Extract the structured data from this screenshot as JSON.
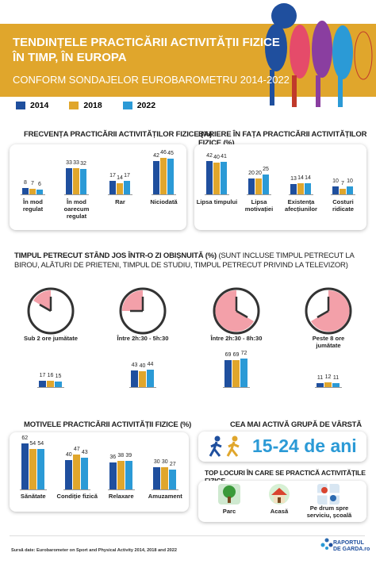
{
  "header": {
    "title": [
      "TENDINȚELE PRACTICĂRII ACTIVITĂȚII FIZICE",
      "ÎN TIMP, ÎN EUROPA"
    ],
    "subtitle": "CONFORM SONDAJELOR EUROBAROMETRU 2014-2022"
  },
  "chart_data": [
    {
      "type": "bar",
      "title": "FRECVENȚA PRACTICĂRII ACTIVITĂȚILOR FIZICE (%)",
      "categories": [
        "În mod regulat",
        "În mod oarecum regulat",
        "Rar",
        "Niciodată"
      ],
      "series": [
        {
          "name": "2014",
          "color": "#1f4f9e",
          "values": [
            8,
            33,
            17,
            42
          ]
        },
        {
          "name": "2018",
          "color": "#e0a62c",
          "values": [
            7,
            33,
            14,
            46
          ]
        },
        {
          "name": "2022",
          "color": "#2b9ad6",
          "values": [
            6,
            32,
            17,
            45
          ]
        }
      ]
    },
    {
      "type": "bar",
      "title": "BARIERE ÎN FAȚA PRACTICĂRII ACTIVITĂȚILOR FIZICE (%)",
      "categories": [
        "Lipsa timpului",
        "Lipsa motivației",
        "Existența afecțiunilor",
        "Costuri ridicate"
      ],
      "series": [
        {
          "name": "2014",
          "color": "#1f4f9e",
          "values": [
            42,
            20,
            13,
            10
          ]
        },
        {
          "name": "2018",
          "color": "#e0a62c",
          "values": [
            40,
            20,
            14,
            7
          ]
        },
        {
          "name": "2022",
          "color": "#2b9ad6",
          "values": [
            41,
            25,
            14,
            10
          ]
        }
      ]
    },
    {
      "type": "bar",
      "title": "TIMPUL PETRECUT STÂND JOS ÎNTR-O ZI OBIȘNUITĂ (%)",
      "subtitle": "(SUNT INCLUSE TIMPUL PETRECUT LA BIROU, ALĂTURI DE PRIETENI, TIMPUL DE STUDIU, TIMPUL PETRECUT PRIVIND LA TELEVIZOR)",
      "categories": [
        "Sub 2 ore jumătate",
        "Între 2h:30 - 5h:30",
        "Între 2h:30 - 8h:30",
        "Peste 8 ore jumătate"
      ],
      "series": [
        {
          "name": "2014",
          "color": "#1f4f9e",
          "values": [
            17,
            43,
            69,
            11
          ]
        },
        {
          "name": "2018",
          "color": "#e0a62c",
          "values": [
            16,
            40,
            69,
            12
          ]
        },
        {
          "name": "2022",
          "color": "#2b9ad6",
          "values": [
            15,
            44,
            72,
            11
          ]
        }
      ]
    },
    {
      "type": "bar",
      "title": "MOTIVELE PRACTICĂRII ACTIVITĂȚII FIZICE (%)",
      "categories": [
        "Sănătate",
        "Condiție fizică",
        "Relaxare",
        "Amuzament"
      ],
      "series": [
        {
          "name": "2014",
          "color": "#1f4f9e",
          "values": [
            62,
            40,
            36,
            30
          ]
        },
        {
          "name": "2018",
          "color": "#e0a62c",
          "values": [
            54,
            47,
            38,
            30
          ]
        },
        {
          "name": "2022",
          "color": "#2b9ad6",
          "values": [
            54,
            43,
            39,
            27
          ]
        }
      ]
    }
  ],
  "age_group": {
    "title": "CEA MAI ACTIVĂ GRUPĂ DE VÂRSTĂ",
    "value": "15-24 de ani"
  },
  "top_places": {
    "title": "TOP LOCURI ÎN CARE SE PRACTICĂ ACTIVITĂȚILE FIZICE",
    "items": [
      "Parc",
      "Acasă",
      "Pe drum spre serviciu, școală"
    ]
  },
  "source": "Sursă date: Eurobarometer on Sport and Physical Activity 2014, 2018 and 2022",
  "logo": [
    "RAPORTUL",
    "DE GARDA.ro"
  ]
}
